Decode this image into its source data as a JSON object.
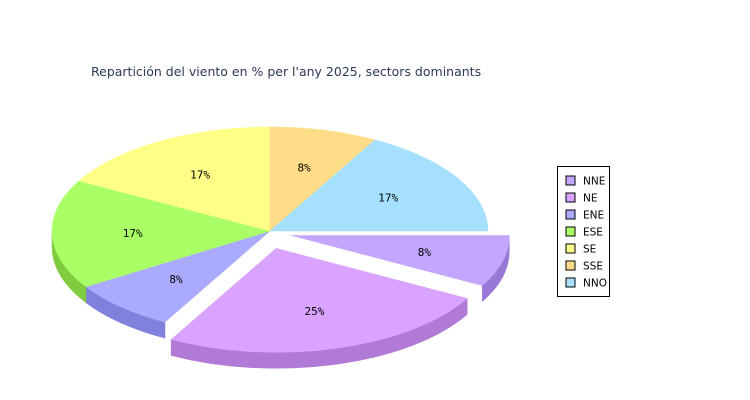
{
  "chart_data": {
    "type": "pie",
    "title": "Repartición del viento en % per l'any 2025, sectors dominants",
    "categories": [
      "NNE",
      "NE",
      "ENE",
      "ESE",
      "SE",
      "SSE",
      "NNO"
    ],
    "values": [
      8,
      25,
      8,
      17,
      17,
      8,
      17
    ],
    "labels": [
      "8%",
      "25%",
      "8%",
      "17%",
      "17%",
      "8%",
      "17%"
    ],
    "exploded": [
      "NNE",
      "NE"
    ],
    "colors": [
      "#c4a6ff",
      "#d9a3ff",
      "#aaaaff",
      "#aaff66",
      "#ffff88",
      "#ffdd88",
      "#a6e0ff"
    ],
    "side_colors": [
      "#9a78d8",
      "#b07ad6",
      "#8080dd",
      "#80cc40",
      "#d6d660",
      "#d6b060",
      "#7ab8d6"
    ],
    "legend_position": "right",
    "style": "3d"
  }
}
